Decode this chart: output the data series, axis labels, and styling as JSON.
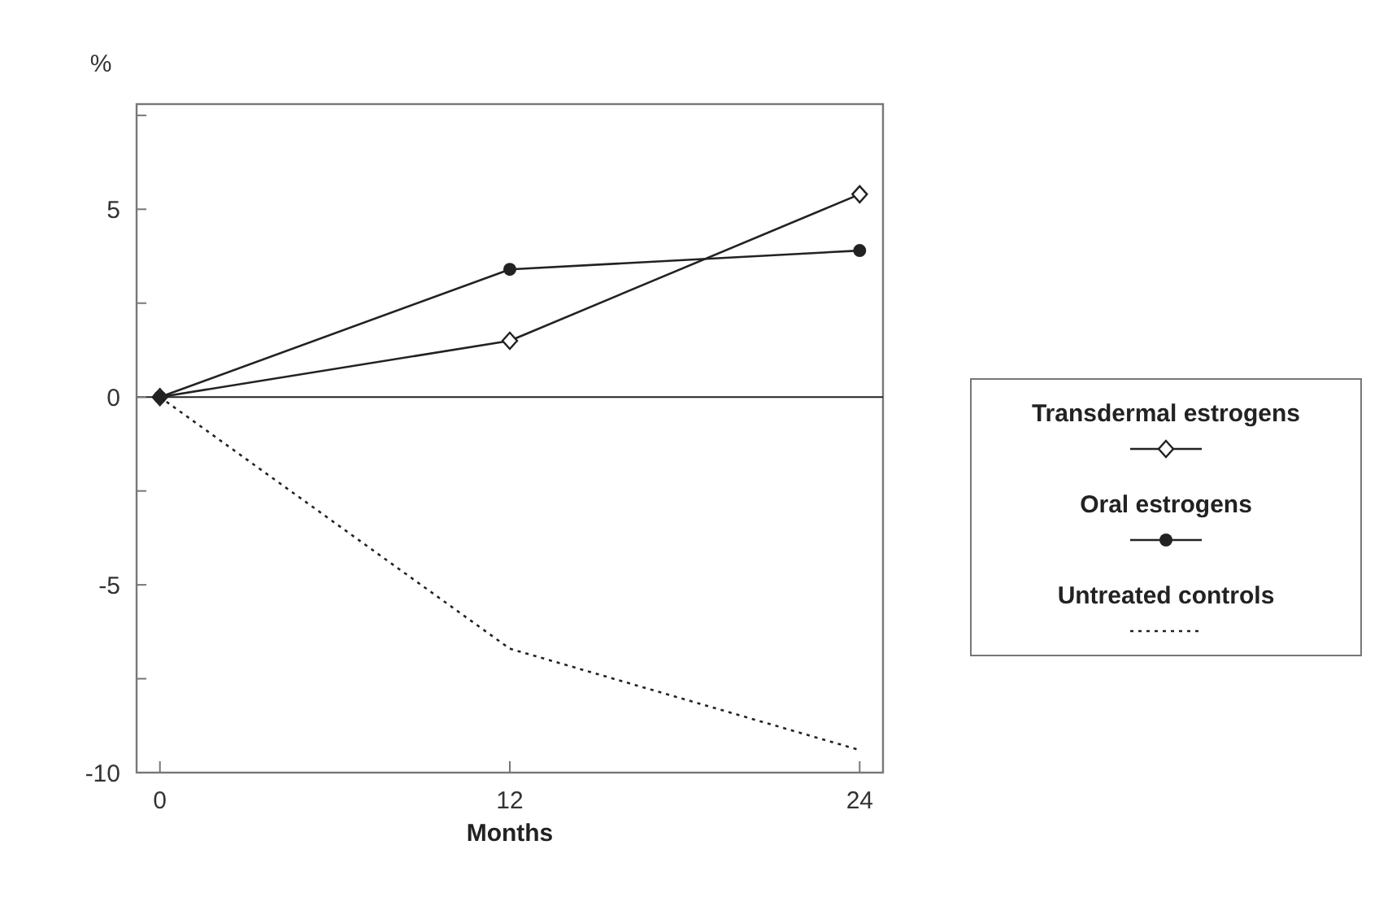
{
  "chart_data": {
    "type": "line",
    "ylabel": "%",
    "xlabel": "Months",
    "x": [
      0,
      12,
      24
    ],
    "xlim": [
      -0.8,
      24.8
    ],
    "xticks": [
      0,
      12,
      24
    ],
    "ylim": [
      -10,
      7.8
    ],
    "yticks": [
      {
        "value": 7.5,
        "label": null
      },
      5,
      {
        "value": 2.5,
        "label": null
      },
      0,
      {
        "value": -2.5,
        "label": null
      },
      -5,
      {
        "value": -7.5,
        "label": null
      },
      -10
    ],
    "series": [
      {
        "name": "Transdermal estrogens",
        "color": "#222222",
        "values": [
          0,
          1.5,
          5.4
        ],
        "marker": "diamond",
        "line_style": "solid"
      },
      {
        "name": "Oral estrogens",
        "color": "#222222",
        "values": [
          0,
          3.4,
          3.9
        ],
        "marker": "circle",
        "line_style": "solid"
      },
      {
        "name": "Untreated controls",
        "color": "#222222",
        "values": [
          0,
          -6.7,
          -9.4
        ],
        "marker": "none",
        "line_style": "dotted"
      }
    ],
    "ref_lines": [
      {
        "axis": "y",
        "value": 0,
        "color": "#222222"
      }
    ],
    "legend": "right",
    "grid": false
  }
}
